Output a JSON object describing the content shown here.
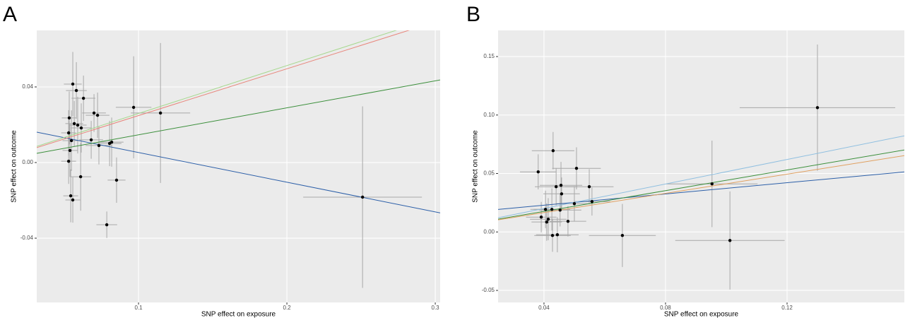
{
  "chart_data": [
    {
      "type": "scatter",
      "panel": "A",
      "xlabel": "SNP effect on exposure",
      "ylabel": "SNP effect on outcome",
      "x": [
        0.0557,
        0.0581,
        0.0629,
        0.0533,
        0.0567,
        0.059,
        0.0614,
        0.0529,
        0.07,
        0.0724,
        0.0967,
        0.1148,
        0.0548,
        0.0681,
        0.0733,
        0.0805,
        0.0819,
        0.0538,
        0.0529,
        0.061,
        0.0852,
        0.0543,
        0.0557,
        0.0786,
        0.251
      ],
      "y": [
        0.0415,
        0.0381,
        0.034,
        0.0236,
        0.0206,
        0.0198,
        0.0183,
        0.0157,
        0.0262,
        0.025,
        0.0292,
        0.0262,
        0.0116,
        0.012,
        0.009,
        0.0101,
        0.0108,
        0.0064,
        0.0007,
        -0.0075,
        -0.0093,
        -0.0176,
        -0.0198,
        -0.0329,
        -0.0183
      ],
      "xerr": [
        0.006,
        0.007,
        0.008,
        0.005,
        0.006,
        0.006,
        0.007,
        0.005,
        0.008,
        0.008,
        0.012,
        0.02,
        0.006,
        0.008,
        0.009,
        0.008,
        0.008,
        0.005,
        0.005,
        0.007,
        0.006,
        0.005,
        0.005,
        0.007,
        0.04
      ],
      "yerr": [
        0.017,
        0.015,
        0.012,
        0.014,
        0.012,
        0.015,
        0.013,
        0.012,
        0.01,
        0.012,
        0.027,
        0.037,
        0.016,
        0.01,
        0.01,
        0.012,
        0.013,
        0.014,
        0.012,
        0.018,
        0.012,
        0.014,
        0.012,
        0.007,
        0.048
      ],
      "point_color": "#000000",
      "errorbar_color": "#a8a8a8",
      "lines": [
        {
          "color": "#2c5fa8",
          "intercept": 0.021,
          "slope": -0.157
        },
        {
          "color": "#3b8f3b",
          "intercept": 0.0004,
          "slope": 0.1427
        },
        {
          "color": "#e8867c",
          "intercept": 0.0001,
          "slope": 0.2475
        },
        {
          "color": "#a6d88e",
          "intercept": 0.0006,
          "slope": 0.2534
        }
      ],
      "xlim": [
        0.0314,
        0.3033
      ],
      "ylim": [
        -0.074,
        0.0699
      ],
      "xticks": [
        0.1,
        0.2,
        0.3
      ],
      "yticks": [
        -0.04,
        {
          "value": 0,
          "label": "0.00"
        },
        0.04
      ],
      "grid": true
    },
    {
      "type": "scatter",
      "panel": "B",
      "xlabel": "SNP effect on exposure",
      "ylabel": "SNP effect on outcome",
      "x": [
        0.0381,
        0.043,
        0.0507,
        0.044,
        0.0456,
        0.0458,
        0.0549,
        0.0558,
        0.05,
        0.0405,
        0.0426,
        0.0453,
        0.0391,
        0.0414,
        0.0409,
        0.0479,
        0.0428,
        0.0444,
        0.0658,
        0.0953,
        0.1012,
        0.13
      ],
      "y": [
        0.0514,
        0.0695,
        0.0544,
        0.0387,
        0.0399,
        0.0326,
        0.0387,
        0.026,
        0.0242,
        0.0193,
        0.0193,
        0.0187,
        0.0127,
        0.0109,
        0.0085,
        0.0091,
        -0.003,
        -0.0024,
        -0.003,
        0.0411,
        -0.0073,
        0.1063
      ],
      "xerr": [
        0.006,
        0.007,
        0.008,
        0.007,
        0.007,
        0.006,
        0.008,
        0.006,
        0.006,
        0.005,
        0.006,
        0.007,
        0.005,
        0.006,
        0.005,
        0.006,
        0.006,
        0.007,
        0.011,
        0.015,
        0.018,
        0.0256
      ],
      "yerr": [
        0.015,
        0.016,
        0.018,
        0.016,
        0.02,
        0.014,
        0.015,
        0.012,
        0.015,
        0.016,
        0.018,
        0.014,
        0.013,
        0.018,
        0.016,
        0.013,
        0.014,
        0.015,
        0.027,
        0.037,
        0.042,
        0.054
      ],
      "point_color": "#000000",
      "errorbar_color": "#a8a8a8",
      "lines": [
        {
          "color": "#2c5fa8",
          "intercept": 0.0133,
          "slope": 0.24
        },
        {
          "color": "#8fbfe0",
          "intercept": -0.0009,
          "slope": 0.524
        },
        {
          "color": "#3b8f3b",
          "intercept": -0.0001,
          "slope": 0.4428
        },
        {
          "color": "#e0a060",
          "intercept": 0.0001,
          "slope": 0.411
        }
      ],
      "xlim": [
        0.0249,
        0.1586
      ],
      "ylim": [
        -0.0603,
        0.1724
      ],
      "xticks": [
        0.04,
        0.08,
        0.12
      ],
      "yticks": [
        -0.05,
        {
          "value": 0,
          "label": "0.00"
        },
        0.05,
        {
          "value": 0.1,
          "label": "0.10"
        },
        0.15
      ],
      "grid": true
    }
  ]
}
